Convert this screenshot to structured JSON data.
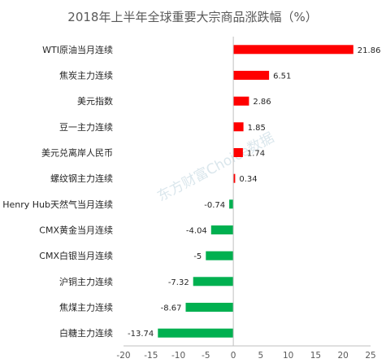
{
  "chart_data": {
    "type": "bar",
    "orientation": "horizontal",
    "title": "2018年上半年全球重要大宗商品涨跌幅（%）",
    "categories": [
      "WTI原油当月连续",
      "焦炭主力连续",
      "美元指数",
      "豆一主力连续",
      "美元兑离岸人民币",
      "螺纹钢主力连续",
      "Henry Hub天然气当月连续",
      "CMX黄金当月连续",
      "CMX白银当月连续",
      "沪铜主力连续",
      "焦煤主力连续",
      "白糖主力连续"
    ],
    "values": [
      21.86,
      6.51,
      2.86,
      1.85,
      1.74,
      0.34,
      -0.74,
      -4.04,
      -5,
      -7.32,
      -8.67,
      -13.74
    ],
    "value_labels": [
      "21.86",
      "6.51",
      "2.86",
      "1.85",
      "1.74",
      "0.34",
      "-0.74",
      "-4.04",
      "-5",
      "-7.32",
      "-8.67",
      "-13.74"
    ],
    "xlim": [
      -20,
      25
    ],
    "xticks": [
      "-20",
      "-15",
      "-10",
      "-5",
      "0",
      "5",
      "10",
      "15",
      "20",
      "25"
    ],
    "colors": {
      "positive": "#ff0000",
      "negative": "#00b050"
    },
    "grid": false,
    "legend": "none",
    "watermark": "东方财富Choice数据"
  }
}
